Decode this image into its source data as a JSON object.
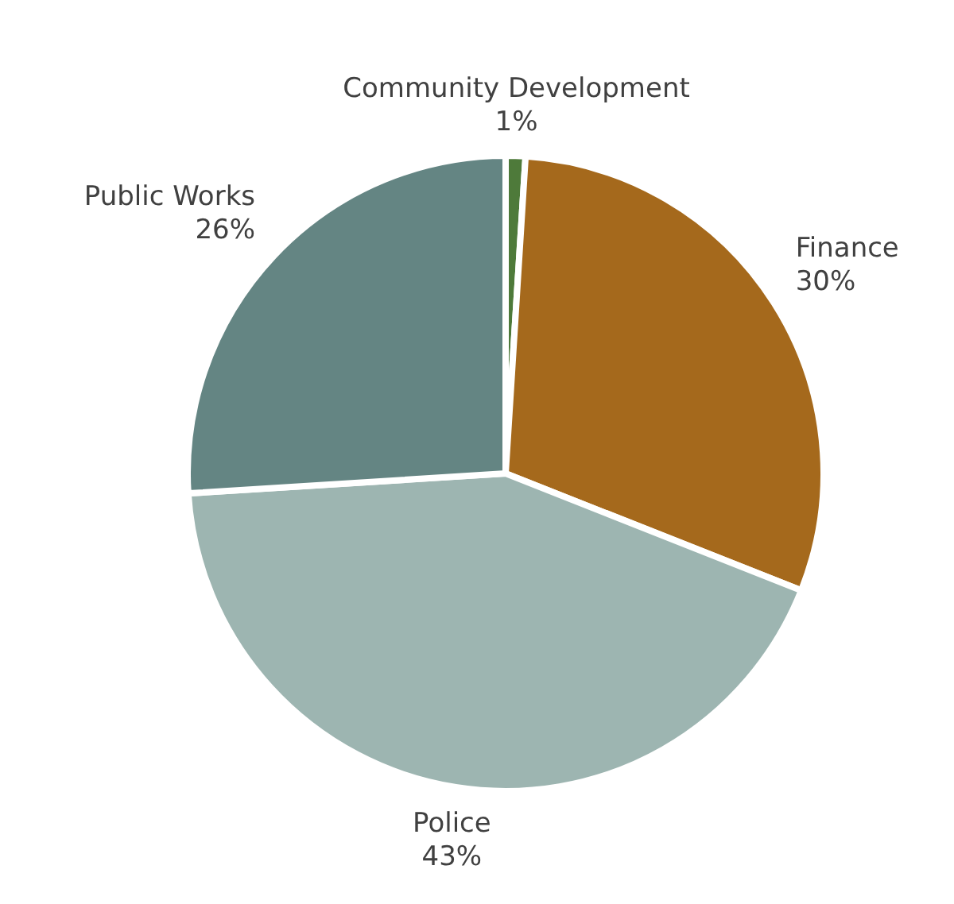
{
  "chart_data": {
    "type": "pie",
    "categories": [
      "Community Development",
      "Finance",
      "Police",
      "Public Works"
    ],
    "values": [
      1,
      30,
      43,
      26
    ],
    "value_labels": [
      "1%",
      "30%",
      "43%",
      "26%"
    ],
    "colors": [
      "#4e7a3a",
      "#a5691c",
      "#9db5b1",
      "#648583"
    ],
    "legend": false
  }
}
